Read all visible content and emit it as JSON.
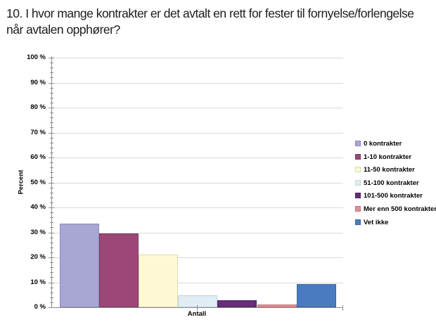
{
  "title": "10. I hvor mange kontrakter er det avtalt en rett for fester til fornyelse/forlengelse når avtalen opphører?",
  "chart_data": {
    "type": "bar",
    "categories": [
      "0 kontrakter",
      "1-10 kontrakter",
      "11-50 kontrakter",
      "51-100 kontrakter",
      "101-500 kontrakter",
      "Mer enn 500 kontrakter",
      "Vet ikke"
    ],
    "values": [
      33.5,
      29.5,
      21,
      4.9,
      2.7,
      1,
      9.2
    ],
    "colors": [
      "#a8a6d3",
      "#9c4877",
      "#fdf9d5",
      "#e0edf2",
      "#662d7a",
      "#e29093",
      "#4a7bc0"
    ],
    "border_colors": [
      "#8d8ac2",
      "#7e3a60",
      "#ddd8ae",
      "#bcd7e0",
      "#4f2260",
      "#c97579",
      "#3b66a0"
    ],
    "xlabel": "Antall",
    "ylabel": "Percent",
    "ylim": [
      0,
      100
    ],
    "y_tick_step": 10,
    "y_minor_tick_step": 2,
    "y_tick_labels": [
      "0 %",
      "10 %",
      "20 %",
      "30 %",
      "40 %",
      "50 %",
      "60 %",
      "70 %",
      "80 %",
      "90 %",
      "100 %"
    ],
    "grid": true,
    "legend_position": "right",
    "grid_color": "#d9d9d9",
    "axis_color": "#8c8c8c"
  }
}
